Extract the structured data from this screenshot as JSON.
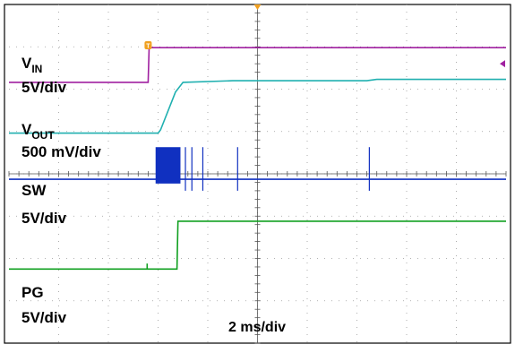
{
  "chart_data": {
    "type": "line",
    "title": "",
    "timebase": "2 ms/div",
    "x_divisions": 10,
    "y_divisions": 8,
    "x_unit": "div",
    "grid": true,
    "trigger_marker_label": "T",
    "series": [
      {
        "name": "VIN",
        "label_main": "V",
        "label_sub": "IN",
        "scale": "5V/div",
        "color": "#a020a0",
        "points": [
          [
            0,
            6.16
          ],
          [
            2.8,
            6.16
          ],
          [
            2.82,
            6.98
          ],
          [
            10,
            6.98
          ]
        ]
      },
      {
        "name": "VOUT",
        "label_main": "V",
        "label_sub": "OUT",
        "scale": "500 mV/div",
        "color": "#20b0b0",
        "points": [
          [
            0,
            4.96
          ],
          [
            3.0,
            4.96
          ],
          [
            3.05,
            5.04
          ],
          [
            3.35,
            5.93
          ],
          [
            3.5,
            6.16
          ],
          [
            4.5,
            6.2
          ],
          [
            7.2,
            6.2
          ],
          [
            7.4,
            6.23
          ],
          [
            10,
            6.23
          ]
        ]
      },
      {
        "name": "SW",
        "label_main": "SW",
        "label_sub": "",
        "scale": "5V/div",
        "color": "#1030c0",
        "points": [
          [
            0,
            3.87
          ],
          [
            10,
            3.87
          ]
        ]
      },
      {
        "name": "PG",
        "label_main": "PG",
        "label_sub": "",
        "scale": "5V/div",
        "color": "#10a020",
        "points": [
          [
            0,
            1.75
          ],
          [
            3.38,
            1.75
          ],
          [
            3.4,
            2.88
          ],
          [
            10,
            2.88
          ]
        ]
      }
    ],
    "sw_switching_burst": {
      "x_start": 2.95,
      "x_end": 3.45,
      "y_low": 3.77,
      "y_high": 4.63
    },
    "sw_spikes_x": [
      3.55,
      3.68,
      3.9,
      4.6,
      7.25
    ],
    "pg_glitch_x": 2.78,
    "vin_ground_marker_y": 6.6
  }
}
